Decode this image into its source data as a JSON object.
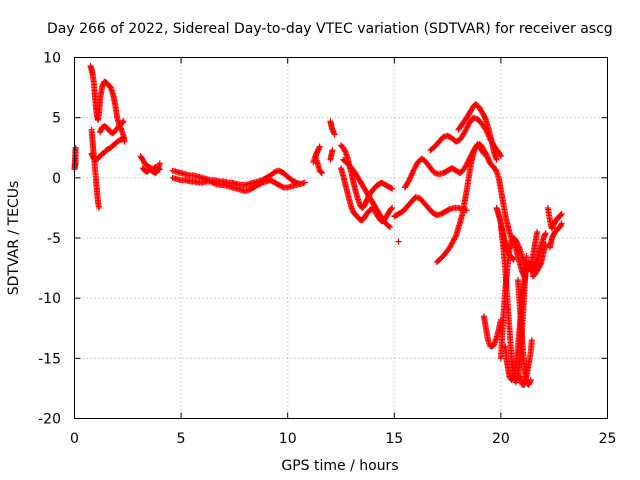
{
  "chart_data": {
    "type": "scatter",
    "title": "Day 266 of 2022, Sidereal Day-to-day VTEC variation (SDTVAR) for receiver ascg",
    "xlabel": "GPS time / hours",
    "ylabel": "SDTVAR / TECUs",
    "xlim": [
      0,
      25
    ],
    "ylim": [
      -20,
      10
    ],
    "x_ticks": [
      0,
      5,
      10,
      15,
      20,
      25
    ],
    "y_ticks": [
      -20,
      -15,
      -10,
      -5,
      0,
      5,
      10
    ],
    "x_tick_labels": [
      "0",
      "5",
      "10",
      "15",
      "20",
      "25"
    ],
    "y_tick_labels": [
      "-20",
      "-15",
      "-10",
      "-5",
      "0",
      "5",
      "10"
    ],
    "grid": true,
    "marker": "+",
    "marker_color": "#ff0000",
    "series": [
      {
        "name": "t0",
        "x": [
          0.0,
          0.05,
          0.05,
          0.0
        ],
        "y": [
          0.8,
          1.2,
          2.5,
          0.7
        ]
      },
      {
        "name": "t1",
        "x": [
          0.75,
          0.8,
          0.85,
          0.9,
          0.95,
          1.0,
          1.05,
          1.1,
          1.15,
          1.2,
          1.3,
          1.4,
          1.5,
          1.6,
          1.7,
          1.8,
          1.9,
          2.0,
          2.1,
          2.2,
          2.3,
          2.35
        ],
        "y": [
          9.3,
          9.0,
          8.6,
          8.0,
          7.0,
          6.0,
          5.2,
          4.8,
          5.3,
          6.5,
          7.6,
          8.0,
          7.9,
          7.7,
          7.5,
          7.0,
          6.2,
          5.0,
          4.4,
          4.0,
          3.5,
          3.0
        ]
      },
      {
        "name": "t2",
        "x": [
          0.8,
          0.85,
          0.9,
          0.95,
          1.0,
          1.05,
          1.1,
          1.15
        ],
        "y": [
          4.0,
          3.0,
          2.0,
          1.0,
          0.0,
          -1.0,
          -2.0,
          -2.5
        ]
      },
      {
        "name": "t3",
        "x": [
          0.8,
          0.9,
          1.0,
          1.1,
          1.2,
          1.3,
          1.4,
          1.5,
          1.6,
          1.7,
          1.8,
          1.9,
          2.0,
          2.1,
          2.2,
          2.3
        ],
        "y": [
          2.0,
          1.6,
          1.5,
          1.6,
          1.8,
          2.0,
          2.1,
          2.3,
          2.4,
          2.5,
          2.7,
          2.8,
          3.0,
          3.1,
          3.2,
          3.3
        ]
      },
      {
        "name": "t4",
        "x": [
          1.2,
          1.3,
          1.4,
          1.5,
          1.6,
          1.7,
          1.8,
          1.9,
          2.0,
          2.1,
          2.2,
          2.3
        ],
        "y": [
          3.8,
          4.2,
          4.3,
          4.2,
          4.0,
          3.8,
          3.7,
          3.9,
          4.1,
          4.3,
          4.5,
          4.7
        ]
      },
      {
        "name": "t5",
        "x": [
          3.1,
          3.2,
          3.3,
          3.4,
          3.5,
          3.6,
          3.7,
          3.8,
          3.9,
          4.0
        ],
        "y": [
          1.8,
          1.5,
          1.2,
          1.0,
          0.9,
          0.8,
          0.7,
          0.9,
          0.8,
          0.7
        ]
      },
      {
        "name": "t6",
        "x": [
          3.2,
          3.3,
          3.4,
          3.5,
          3.6,
          3.7,
          3.8,
          3.9,
          4.0
        ],
        "y": [
          0.8,
          0.6,
          0.5,
          0.7,
          0.6,
          0.5,
          0.4,
          0.6,
          1.2
        ]
      },
      {
        "name": "t7",
        "x": [
          4.6,
          4.8,
          5.0,
          5.2,
          5.4,
          5.6,
          5.8,
          6.0,
          6.2,
          6.4,
          6.6,
          6.8,
          7.0,
          7.2,
          7.4,
          7.6,
          7.8,
          8.0,
          8.2,
          8.4,
          8.6,
          8.8,
          9.0,
          9.2,
          9.4,
          9.6,
          9.8,
          10.0,
          10.2,
          10.4,
          10.6,
          10.8
        ],
        "y": [
          0.6,
          0.5,
          0.4,
          0.3,
          0.2,
          0.2,
          0.1,
          0.0,
          -0.1,
          -0.2,
          -0.2,
          -0.3,
          -0.3,
          -0.4,
          -0.4,
          -0.5,
          -0.6,
          -0.6,
          -0.5,
          -0.4,
          -0.3,
          -0.2,
          0.0,
          0.2,
          0.5,
          0.6,
          0.4,
          0.1,
          -0.2,
          -0.4,
          -0.5,
          -0.4
        ]
      },
      {
        "name": "t8",
        "x": [
          4.6,
          4.8,
          5.0,
          5.2,
          5.4,
          5.6,
          5.8,
          6.0,
          6.2,
          6.4,
          6.6,
          6.8,
          7.0,
          7.2,
          7.4,
          7.6,
          7.8,
          8.0,
          8.2,
          8.4,
          8.6,
          8.8,
          9.0,
          9.2,
          9.4,
          9.6,
          9.8,
          10.0,
          10.2,
          10.4,
          10.6
        ],
        "y": [
          0.0,
          -0.1,
          -0.2,
          -0.2,
          -0.3,
          -0.3,
          -0.4,
          -0.4,
          -0.3,
          -0.3,
          -0.5,
          -0.6,
          -0.6,
          -0.7,
          -0.8,
          -0.9,
          -1.0,
          -1.1,
          -1.0,
          -0.8,
          -0.6,
          -0.4,
          -0.3,
          -0.2,
          -0.4,
          -0.6,
          -0.8,
          -0.8,
          -0.7,
          -0.6,
          -0.5
        ]
      },
      {
        "name": "t9",
        "x": [
          11.2,
          11.3,
          11.4,
          11.5
        ],
        "y": [
          1.3,
          1.8,
          2.2,
          2.6
        ]
      },
      {
        "name": "t10",
        "x": [
          11.3,
          11.4,
          11.5,
          11.6
        ],
        "y": [
          1.8,
          1.2,
          0.6,
          0.4
        ]
      },
      {
        "name": "t11",
        "x": [
          12.0,
          12.05,
          12.1,
          12.15,
          12.2
        ],
        "y": [
          4.7,
          4.3,
          4.0,
          3.8,
          3.6
        ]
      },
      {
        "name": "t12",
        "x": [
          12.0,
          12.1
        ],
        "y": [
          1.5,
          2.3
        ]
      },
      {
        "name": "t13",
        "x": [
          12.5,
          12.6,
          12.7,
          12.8,
          12.9,
          13.0,
          13.1,
          13.2,
          13.3,
          13.4,
          13.5,
          13.6,
          13.7,
          13.8,
          13.9,
          14.0,
          14.1,
          14.2,
          14.3,
          14.4,
          14.5,
          14.6,
          14.7,
          14.8,
          14.9
        ],
        "y": [
          2.7,
          2.5,
          2.2,
          1.7,
          1.0,
          0.3,
          -0.5,
          -1.2,
          -1.8,
          -2.3,
          -2.5,
          -2.3,
          -1.9,
          -1.5,
          -1.2,
          -1.0,
          -0.8,
          -0.6,
          -0.5,
          -0.4,
          -0.5,
          -0.6,
          -0.7,
          -0.8,
          -0.9
        ]
      },
      {
        "name": "t14",
        "x": [
          12.5,
          12.6,
          12.7,
          12.8,
          12.9,
          13.0,
          13.1,
          13.2,
          13.3,
          13.4,
          13.5,
          13.6,
          13.7,
          13.8,
          13.9,
          14.0,
          14.1,
          14.2,
          14.3,
          14.4,
          14.5,
          14.6,
          14.7,
          14.8,
          14.9
        ],
        "y": [
          0.8,
          0.2,
          -0.5,
          -1.2,
          -1.9,
          -2.5,
          -2.9,
          -3.1,
          -3.3,
          -3.5,
          -3.5,
          -3.3,
          -3.0,
          -2.8,
          -2.6,
          -2.6,
          -2.8,
          -3.1,
          -3.4,
          -3.6,
          -3.6,
          -3.3,
          -3.0,
          -2.7,
          -2.5
        ]
      },
      {
        "name": "t15",
        "x": [
          12.6,
          12.8,
          13.0,
          13.2,
          13.4,
          13.6,
          13.8,
          14.0,
          14.2,
          14.4,
          14.6,
          14.8
        ],
        "y": [
          1.5,
          1.2,
          0.8,
          0.3,
          -0.3,
          -0.9,
          -1.5,
          -2.1,
          -2.7,
          -3.3,
          -3.8,
          -4.1
        ]
      },
      {
        "name": "t16",
        "x": [
          15.2
        ],
        "y": [
          -5.3
        ]
      },
      {
        "name": "t17",
        "x": [
          15.0,
          15.2,
          15.4,
          15.6,
          15.8,
          16.0,
          16.2,
          16.4,
          16.6,
          16.8,
          17.0,
          17.2,
          17.4,
          17.6,
          17.8,
          18.0,
          18.2,
          18.4
        ],
        "y": [
          -3.2,
          -3.0,
          -2.8,
          -2.4,
          -2.0,
          -1.6,
          -1.7,
          -2.1,
          -2.5,
          -2.9,
          -3.1,
          -3.0,
          -2.8,
          -2.6,
          -2.5,
          -2.5,
          -2.6,
          -2.7
        ]
      },
      {
        "name": "t18",
        "x": [
          15.5,
          15.7,
          15.9,
          16.1,
          16.3,
          16.5,
          16.7,
          16.9,
          17.1,
          17.3,
          17.5,
          17.7,
          17.9,
          18.1,
          18.3,
          18.5,
          18.7,
          18.9,
          19.1
        ],
        "y": [
          -0.8,
          -0.2,
          0.6,
          1.3,
          1.6,
          1.3,
          0.8,
          0.4,
          0.3,
          0.4,
          0.6,
          0.8,
          0.6,
          0.4,
          0.8,
          1.5,
          2.2,
          2.7,
          2.5
        ]
      },
      {
        "name": "t19",
        "x": [
          16.7,
          16.9,
          17.1,
          17.3,
          17.5,
          17.7,
          17.9,
          18.1,
          18.3,
          18.5,
          18.7,
          18.9,
          19.1,
          19.3,
          19.5,
          19.7,
          19.9,
          20.0
        ],
        "y": [
          2.3,
          2.6,
          3.0,
          3.4,
          3.5,
          3.3,
          3.0,
          3.2,
          3.8,
          4.5,
          5.0,
          4.9,
          4.5,
          4.0,
          3.2,
          2.6,
          2.1,
          1.8
        ]
      },
      {
        "name": "t20",
        "x": [
          17.0,
          17.3,
          17.6,
          17.9,
          18.2,
          18.4,
          18.6,
          18.7,
          18.8,
          18.9,
          19.0,
          19.2
        ],
        "y": [
          -7.0,
          -6.5,
          -5.8,
          -4.8,
          -3.0,
          -1.0,
          1.2,
          2.0,
          2.5,
          2.8,
          2.6,
          2.0
        ]
      },
      {
        "name": "t21",
        "x": [
          18.0,
          18.2,
          18.4,
          18.6,
          18.7,
          18.8,
          18.9,
          19.0,
          19.1,
          19.2,
          19.3,
          19.4,
          19.5,
          19.6,
          19.7,
          19.8
        ],
        "y": [
          4.0,
          4.5,
          5.0,
          5.6,
          5.9,
          6.1,
          6.0,
          5.8,
          5.5,
          5.2,
          4.8,
          4.2,
          3.5,
          2.8,
          2.0,
          1.5
        ]
      },
      {
        "name": "t22",
        "x": [
          19.0,
          19.1,
          19.2,
          19.3,
          19.4,
          19.5,
          19.6,
          19.7,
          19.8,
          19.9,
          20.0,
          20.1,
          20.2,
          20.3,
          20.4,
          20.5,
          20.6,
          20.7,
          20.8,
          20.9,
          21.0,
          21.1
        ],
        "y": [
          2.8,
          2.6,
          2.3,
          2.0,
          1.6,
          1.2,
          1.0,
          0.8,
          0.5,
          0.0,
          -1.0,
          -2.0,
          -3.0,
          -3.8,
          -4.5,
          -5.0,
          -5.3,
          -5.8,
          -6.5,
          -7.2,
          -7.8,
          -8.2
        ]
      },
      {
        "name": "t23",
        "x": [
          19.2,
          19.3,
          19.4,
          19.5,
          19.6,
          19.7,
          19.8,
          19.9,
          20.0
        ],
        "y": [
          -11.5,
          -12.5,
          -13.5,
          -14.0,
          -14.0,
          -13.8,
          -13.3,
          -12.6,
          -11.8
        ]
      },
      {
        "name": "t24",
        "x": [
          19.8,
          19.85,
          19.9,
          19.95,
          20.0,
          20.05,
          20.1,
          20.15,
          20.2,
          20.25,
          20.3,
          20.35,
          20.4,
          20.45,
          20.5,
          20.55,
          20.6
        ],
        "y": [
          -2.5,
          -2.8,
          -3.1,
          -3.4,
          -3.8,
          -4.2,
          -4.6,
          -5.0,
          -5.4,
          -5.7,
          -6.0,
          -6.2,
          -6.4,
          -6.5,
          -6.6,
          -6.7,
          -6.8
        ]
      },
      {
        "name": "t25",
        "x": [
          20.0,
          20.1,
          20.2,
          20.3,
          20.4,
          20.5,
          20.6,
          20.7,
          20.8,
          20.9,
          21.0,
          21.1,
          21.2
        ],
        "y": [
          -4.0,
          -5.5,
          -7.5,
          -10.0,
          -12.5,
          -15.0,
          -16.5,
          -17.0,
          -16.5,
          -15.0,
          -12.5,
          -9.5,
          -6.5
        ]
      },
      {
        "name": "t26",
        "x": [
          20.2,
          20.3,
          20.4,
          20.5,
          20.6,
          20.7,
          20.8,
          20.9,
          21.0,
          21.1,
          21.2,
          21.3
        ],
        "y": [
          -14.0,
          -15.5,
          -16.5,
          -16.8,
          -16.5,
          -15.5,
          -14.0,
          -12.0,
          -10.0,
          -8.5,
          -7.5,
          -7.0
        ]
      },
      {
        "name": "t27",
        "x": [
          20.0,
          20.1,
          20.2,
          20.3,
          20.4,
          20.5,
          20.6,
          20.7,
          20.8,
          20.9,
          21.0,
          21.1,
          21.2,
          21.3,
          21.4,
          21.5,
          21.6,
          21.7
        ],
        "y": [
          -15.0,
          -12.0,
          -9.5,
          -7.5,
          -6.0,
          -5.2,
          -5.0,
          -5.2,
          -5.6,
          -6.0,
          -6.5,
          -7.0,
          -7.3,
          -7.5,
          -7.3,
          -6.5,
          -5.5,
          -4.5
        ]
      },
      {
        "name": "t28",
        "x": [
          20.8,
          20.9,
          21.0,
          21.1,
          21.2,
          21.3,
          21.4
        ],
        "y": [
          -8.5,
          -11.0,
          -13.5,
          -15.8,
          -17.0,
          -17.2,
          -16.8
        ]
      },
      {
        "name": "t29",
        "x": [
          20.9,
          21.0,
          21.1,
          21.2,
          21.3,
          21.4,
          21.45
        ],
        "y": [
          -16.5,
          -17.2,
          -17.2,
          -16.5,
          -15.5,
          -14.5,
          -13.5
        ]
      },
      {
        "name": "t30",
        "x": [
          21.4,
          21.5,
          21.6,
          21.7,
          21.8,
          21.9,
          22.0,
          22.1
        ],
        "y": [
          -7.8,
          -7.6,
          -7.2,
          -6.8,
          -6.0,
          -5.5,
          -5.0,
          -4.6
        ]
      },
      {
        "name": "t31",
        "x": [
          21.5,
          21.6,
          21.7,
          21.8,
          21.9,
          22.0,
          22.1
        ],
        "y": [
          -8.2,
          -8.0,
          -7.7,
          -7.4,
          -7.0,
          -6.2,
          -5.5
        ]
      },
      {
        "name": "t32",
        "x": [
          22.2,
          22.25,
          22.3,
          22.35,
          22.4,
          22.45,
          22.5,
          22.55,
          22.6,
          22.65,
          22.7,
          22.75,
          22.8,
          22.85
        ],
        "y": [
          -2.5,
          -3.0,
          -3.5,
          -4.0,
          -4.2,
          -4.0,
          -3.8,
          -3.6,
          -3.5,
          -3.4,
          -3.3,
          -3.2,
          -3.1,
          -3.0
        ]
      },
      {
        "name": "t33",
        "x": [
          22.3,
          22.4,
          22.5,
          22.6,
          22.7,
          22.8,
          22.85
        ],
        "y": [
          -5.8,
          -5.0,
          -4.6,
          -4.4,
          -4.2,
          -4.0,
          -3.8
        ]
      }
    ]
  }
}
